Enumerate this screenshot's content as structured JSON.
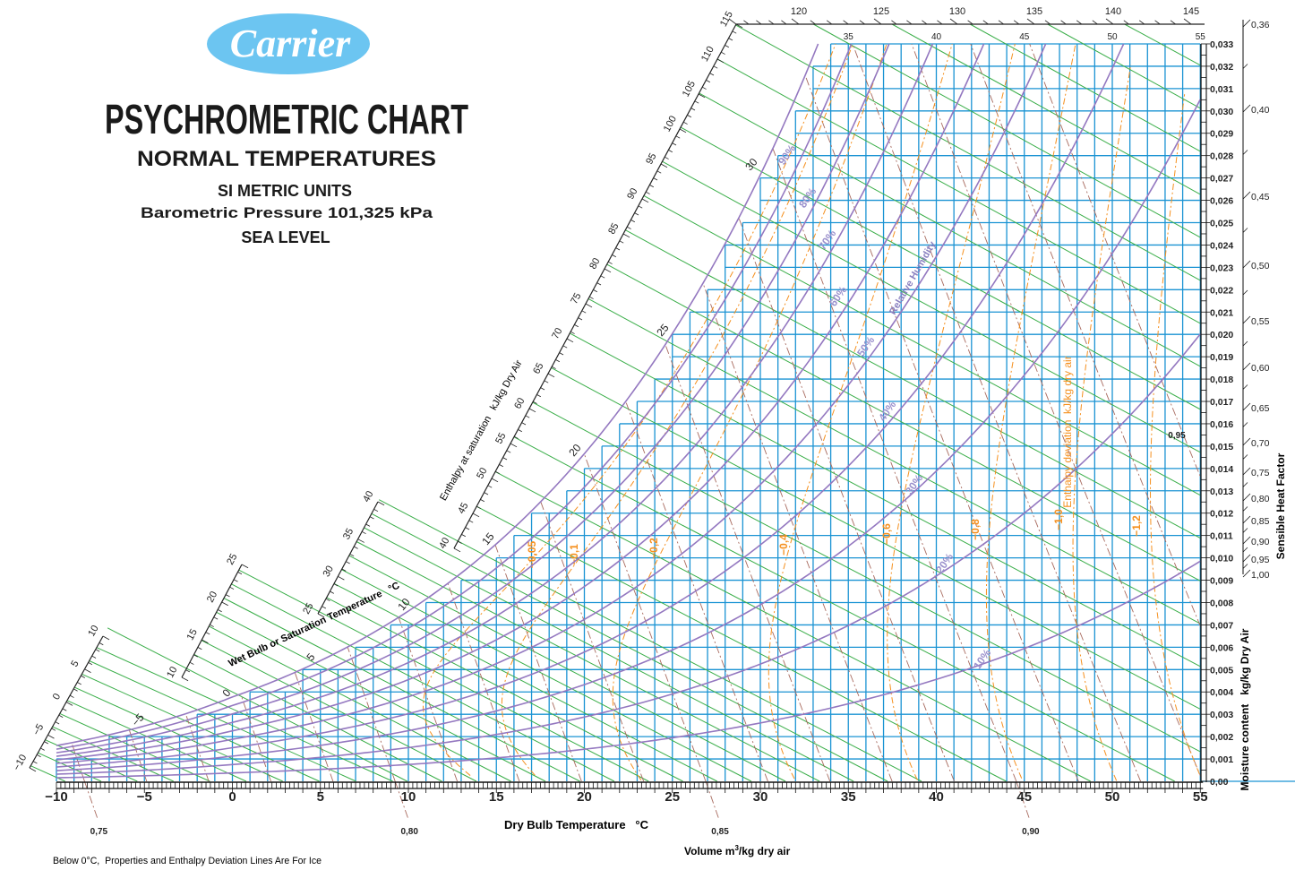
{
  "header": {
    "logo": "Carrier",
    "title": "PSYCHROMETRIC CHART",
    "subtitle": "NORMAL TEMPERATURES",
    "units": "SI METRIC UNITS",
    "pressure": "Barometric Pressure 101,325 kPa",
    "level": "SEA LEVEL"
  },
  "footnote": "Below 0°C,  Properties and Enthalpy Deviation Lines Are For Ice",
  "colors": {
    "grid": "#1a93d3",
    "wet_bulb": "#3aae49",
    "relative_humidity": "#9478c0",
    "rh_label": "#9a90cc",
    "enthalpy_deviation": "#f5901e",
    "volume": "#a86a5e",
    "logo": "#6cc5f1"
  },
  "chart_data": {
    "type": "line",
    "title": "PSYCHROMETRIC CHART",
    "xlabel": "Dry Bulb Temperature   °C",
    "ylabel": "Moisture content   kg/kg Dry Air",
    "xlim": [
      -10,
      55
    ],
    "ylim": [
      0,
      0.033
    ],
    "grid": true,
    "x_ticks": [
      -10,
      -5,
      0,
      5,
      10,
      15,
      20,
      25,
      30,
      35,
      40,
      45,
      50,
      55
    ],
    "x_tick_labels": [
      "−10",
      "−5",
      "0",
      "5",
      "10",
      "15",
      "20",
      "25",
      "30",
      "35",
      "40",
      "45",
      "50",
      "55"
    ],
    "top_x_ticks": [
      35,
      40,
      45,
      50,
      55
    ],
    "top_x_tick_labels": [
      "35",
      "40",
      "45",
      "50",
      "55"
    ],
    "y_tick_labels": [
      "0,00",
      "0,001",
      "0,002",
      "0,003",
      "0,004",
      "0,005",
      "0,006",
      "0,007",
      "0,008",
      "0,009",
      "0,010",
      "0,011",
      "0,012",
      "0,013",
      "0,014",
      "0,015",
      "0,016",
      "0,017",
      "0,018",
      "0,019",
      "0,020",
      "0,021",
      "0,022",
      "0,023",
      "0,024",
      "0,025",
      "0,026",
      "0,027",
      "0,028",
      "0,029",
      "0,030",
      "0,031",
      "0,032",
      "0,033"
    ],
    "relative_humidity_title": "Relative Humidity",
    "relative_humidity": [
      {
        "value": 90,
        "label": "90%"
      },
      {
        "value": 80,
        "label": "80%"
      },
      {
        "value": 70,
        "label": "70%"
      },
      {
        "value": 60,
        "label": "60%"
      },
      {
        "value": 50,
        "label": "50%"
      },
      {
        "value": 40,
        "label": "40%"
      },
      {
        "value": 30,
        "label": "30%"
      },
      {
        "value": 20,
        "label": "20%"
      },
      {
        "value": 10,
        "label": "10%"
      }
    ],
    "wet_bulb_title": "Wet Bulb or Saturation Temperature   °C",
    "saturation_temp_labels": [
      "−5",
      "0",
      "5",
      "10",
      "15",
      "20",
      "25",
      "30"
    ],
    "enthalpy_title": "Enthalpy at saturation   kJ/kg Dry Air",
    "enthalpy_line_values": [
      -10,
      -8,
      -6,
      -4,
      -2,
      0,
      2,
      4,
      6,
      8,
      10,
      12,
      14,
      16,
      18,
      20,
      22,
      24,
      26,
      28,
      30,
      32,
      34,
      36,
      38,
      40,
      45,
      50,
      55,
      60,
      65,
      70,
      75,
      80,
      85,
      90,
      95,
      100,
      105,
      110,
      115,
      120,
      125,
      130,
      135,
      140,
      145
    ],
    "enthalpy_scales": [
      {
        "range": [
          -10,
          10
        ],
        "labels": [
          "−10",
          "−5",
          "0",
          "5",
          "10"
        ]
      },
      {
        "range": [
          10,
          25
        ],
        "labels": [
          "10",
          "15",
          "20",
          "25"
        ]
      },
      {
        "range": [
          25,
          40
        ],
        "labels": [
          "25",
          "30",
          "35",
          "40"
        ]
      },
      {
        "range": [
          40,
          115
        ],
        "labels": [
          "40",
          "45",
          "50",
          "55",
          "60",
          "65",
          "70",
          "75",
          "80",
          "85",
          "90",
          "95",
          "100",
          "105",
          "110",
          "115"
        ]
      },
      {
        "range": [
          115,
          145
        ],
        "labels": [
          "120",
          "125",
          "130",
          "135",
          "140",
          "145"
        ]
      }
    ],
    "volume": {
      "title_pre": "Volume m",
      "title_sup": "3",
      "title_post": "/kg dry air",
      "values": [
        0.75,
        0.76,
        0.77,
        0.78,
        0.79,
        0.8,
        0.81,
        0.82,
        0.83,
        0.84,
        0.85,
        0.86,
        0.87,
        0.88,
        0.89,
        0.9,
        0.91,
        0.92,
        0.93,
        0.94,
        0.95
      ],
      "labeled": [
        0.75,
        0.8,
        0.85,
        0.9,
        0.95
      ],
      "labels": [
        "0,75",
        "0,80",
        "0,85",
        "0,90",
        "0,95"
      ]
    },
    "enthalpy_deviation": {
      "title": "Enthalpy deviation  kJ/kg dry air",
      "values": [
        -0.05,
        -0.1,
        -0.2,
        -0.4,
        -0.6,
        -0.8,
        -1.0,
        -1.2
      ],
      "labels": [
        "−0,05",
        "−0,1",
        "−0,2",
        "−0,4",
        "−0,6",
        "−0,8",
        "−1,0",
        "−1,2"
      ]
    },
    "sensible_heat_factor": {
      "title": "Sensible Heat Factor",
      "labels": [
        "0,36",
        "0,40",
        "0,45",
        "0,50",
        "0,55",
        "0,60",
        "0,65",
        "0,70",
        "0,75",
        "0,80",
        "0,85",
        "0,90",
        "0,95",
        "1,00"
      ]
    }
  }
}
